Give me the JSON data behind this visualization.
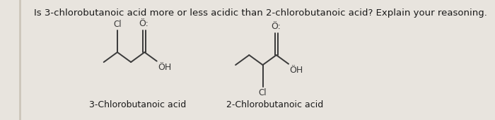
{
  "background_color": "#e8e4de",
  "page_color": "#f2efea",
  "title_text": "Is 3-chlorobutanoic acid more or less acidic than 2-chlorobutanoic acid? Explain your reasoning.",
  "title_fontsize": 9.5,
  "title_color": "#1a1a1a",
  "label1": "3-Chlorobutanoic acid",
  "label2": "2-Chlorobutanoic acid",
  "label_fontsize": 9.0,
  "label_color": "#1a1a1a",
  "bond_color": "#3a3a3a",
  "atom_color": "#3a3a3a",
  "o_color": "#3a3a3a"
}
